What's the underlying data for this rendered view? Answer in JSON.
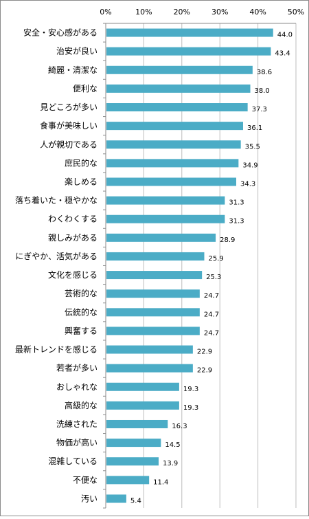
{
  "chart_data": {
    "type": "bar",
    "orientation": "horizontal",
    "title": "",
    "xlabel": "",
    "ylabel": "",
    "xlim": [
      0,
      50
    ],
    "ticks": [
      "0%",
      "10%",
      "20%",
      "30%",
      "40%",
      "50%"
    ],
    "tick_values": [
      0,
      10,
      20,
      30,
      40,
      50
    ],
    "grid": true,
    "legend": "none",
    "bar_color": "#4bacc6",
    "categories": [
      "安全・安心感がある",
      "治安が良い",
      "綺麗・清潔な",
      "便利な",
      "見どころが多い",
      "食事が美味しい",
      "人が親切である",
      "庶民的な",
      "楽しめる",
      "落ち着いた・穏やかな",
      "わくわくする",
      "親しみがある",
      "にぎやか、活気がある",
      "文化を感じる",
      "芸術的な",
      "伝統的な",
      "興奮する",
      "最新トレンドを感じる",
      "若者が多い",
      "おしゃれな",
      "高級的な",
      "洗練された",
      "物価が高い",
      "混雑している",
      "不便な",
      "汚い"
    ],
    "values": [
      44.0,
      43.4,
      38.6,
      38.0,
      37.3,
      36.1,
      35.5,
      34.9,
      34.3,
      31.3,
      31.3,
      28.9,
      25.9,
      25.3,
      24.7,
      24.7,
      24.7,
      22.9,
      22.9,
      19.3,
      19.3,
      16.3,
      14.5,
      13.9,
      11.4,
      5.4
    ],
    "value_labels": [
      "44.0",
      "43.4",
      "38.6",
      "38.0",
      "37.3",
      "36.1",
      "35.5",
      "34.9",
      "34.3",
      "31.3",
      "31.3",
      "28.9",
      "25.9",
      "25.3",
      "24.7",
      "24.7",
      "24.7",
      "22.9",
      "22.9",
      "19.3",
      "19.3",
      "16.3",
      "14.5",
      "13.9",
      "11.4",
      "5.4"
    ]
  }
}
